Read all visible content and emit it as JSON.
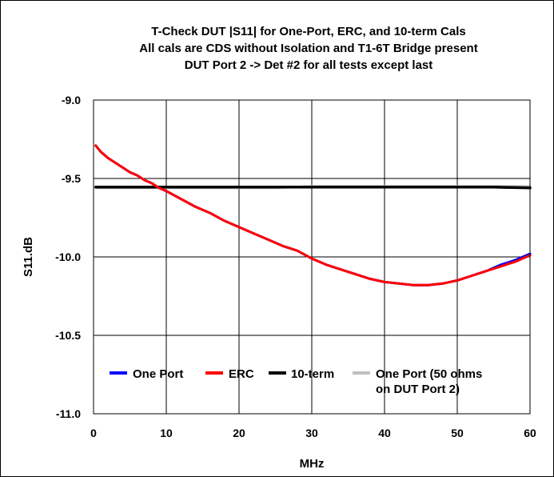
{
  "chart_data": {
    "type": "line",
    "title": [
      "T-Check DUT |S11| for One-Port, ERC, and 10-term Cals",
      "All cals are CDS without Isolation and T1-6T Bridge present",
      "DUT Port 2 -> Det #2 for all tests except last"
    ],
    "xlabel": "MHz",
    "ylabel": "S11.dB",
    "xlim": [
      0,
      60
    ],
    "ylim": [
      -11.0,
      -9.0
    ],
    "xticks": [
      "0",
      "10",
      "20",
      "30",
      "40",
      "50",
      "60"
    ],
    "yticks": [
      "-9.0",
      "-9.5",
      "-10.0",
      "-10.5",
      "-11.0"
    ],
    "grid": true,
    "legend_position": "bottom",
    "series": [
      {
        "name": "One Port",
        "color": "#0000ff",
        "x": [
          0.3,
          1,
          2,
          3,
          4,
          5,
          6,
          7,
          8,
          9,
          10,
          12,
          14,
          16,
          18,
          20,
          22,
          24,
          26,
          28,
          30,
          32,
          34,
          36,
          38,
          40,
          42,
          44,
          46,
          48,
          50,
          52,
          54,
          56,
          58,
          60
        ],
        "y": [
          -9.29,
          -9.33,
          -9.37,
          -9.4,
          -9.43,
          -9.46,
          -9.48,
          -9.51,
          -9.53,
          -9.56,
          -9.58,
          -9.63,
          -9.68,
          -9.72,
          -9.77,
          -9.81,
          -9.85,
          -9.89,
          -9.93,
          -9.96,
          -10.01,
          -10.05,
          -10.08,
          -10.11,
          -10.14,
          -10.16,
          -10.17,
          -10.18,
          -10.18,
          -10.17,
          -10.15,
          -10.12,
          -10.09,
          -10.05,
          -10.02,
          -9.98
        ]
      },
      {
        "name": "ERC",
        "color": "#ff0000",
        "x": [
          0.3,
          1,
          2,
          3,
          4,
          5,
          6,
          7,
          8,
          9,
          10,
          12,
          14,
          16,
          18,
          20,
          22,
          24,
          26,
          28,
          30,
          32,
          34,
          36,
          38,
          40,
          42,
          44,
          46,
          48,
          50,
          52,
          54,
          56,
          58,
          60
        ],
        "y": [
          -9.29,
          -9.33,
          -9.37,
          -9.4,
          -9.43,
          -9.46,
          -9.48,
          -9.51,
          -9.53,
          -9.56,
          -9.58,
          -9.63,
          -9.68,
          -9.72,
          -9.77,
          -9.81,
          -9.85,
          -9.89,
          -9.93,
          -9.96,
          -10.01,
          -10.05,
          -10.08,
          -10.11,
          -10.14,
          -10.16,
          -10.17,
          -10.18,
          -10.18,
          -10.17,
          -10.15,
          -10.12,
          -10.09,
          -10.06,
          -10.03,
          -9.99
        ]
      },
      {
        "name": "10-term",
        "color": "#000000",
        "x": [
          0.3,
          10,
          20,
          30,
          40,
          50,
          55,
          60
        ],
        "y": [
          -9.555,
          -9.555,
          -9.555,
          -9.555,
          -9.555,
          -9.555,
          -9.555,
          -9.56
        ]
      },
      {
        "name": "One Port (50 ohms on DUT  Port 2)",
        "name_lines": [
          "One Port (50 ohms",
          "on DUT  Port 2)"
        ],
        "color": "#c0c0c0",
        "x": [
          0.3,
          10,
          20,
          25,
          30,
          35,
          40,
          45,
          50,
          54,
          60
        ],
        "y": [
          -9.56,
          -9.56,
          -9.56,
          -9.56,
          -9.55,
          -9.55,
          -9.55,
          -9.55,
          -9.55,
          -9.55,
          -9.55
        ]
      }
    ]
  }
}
